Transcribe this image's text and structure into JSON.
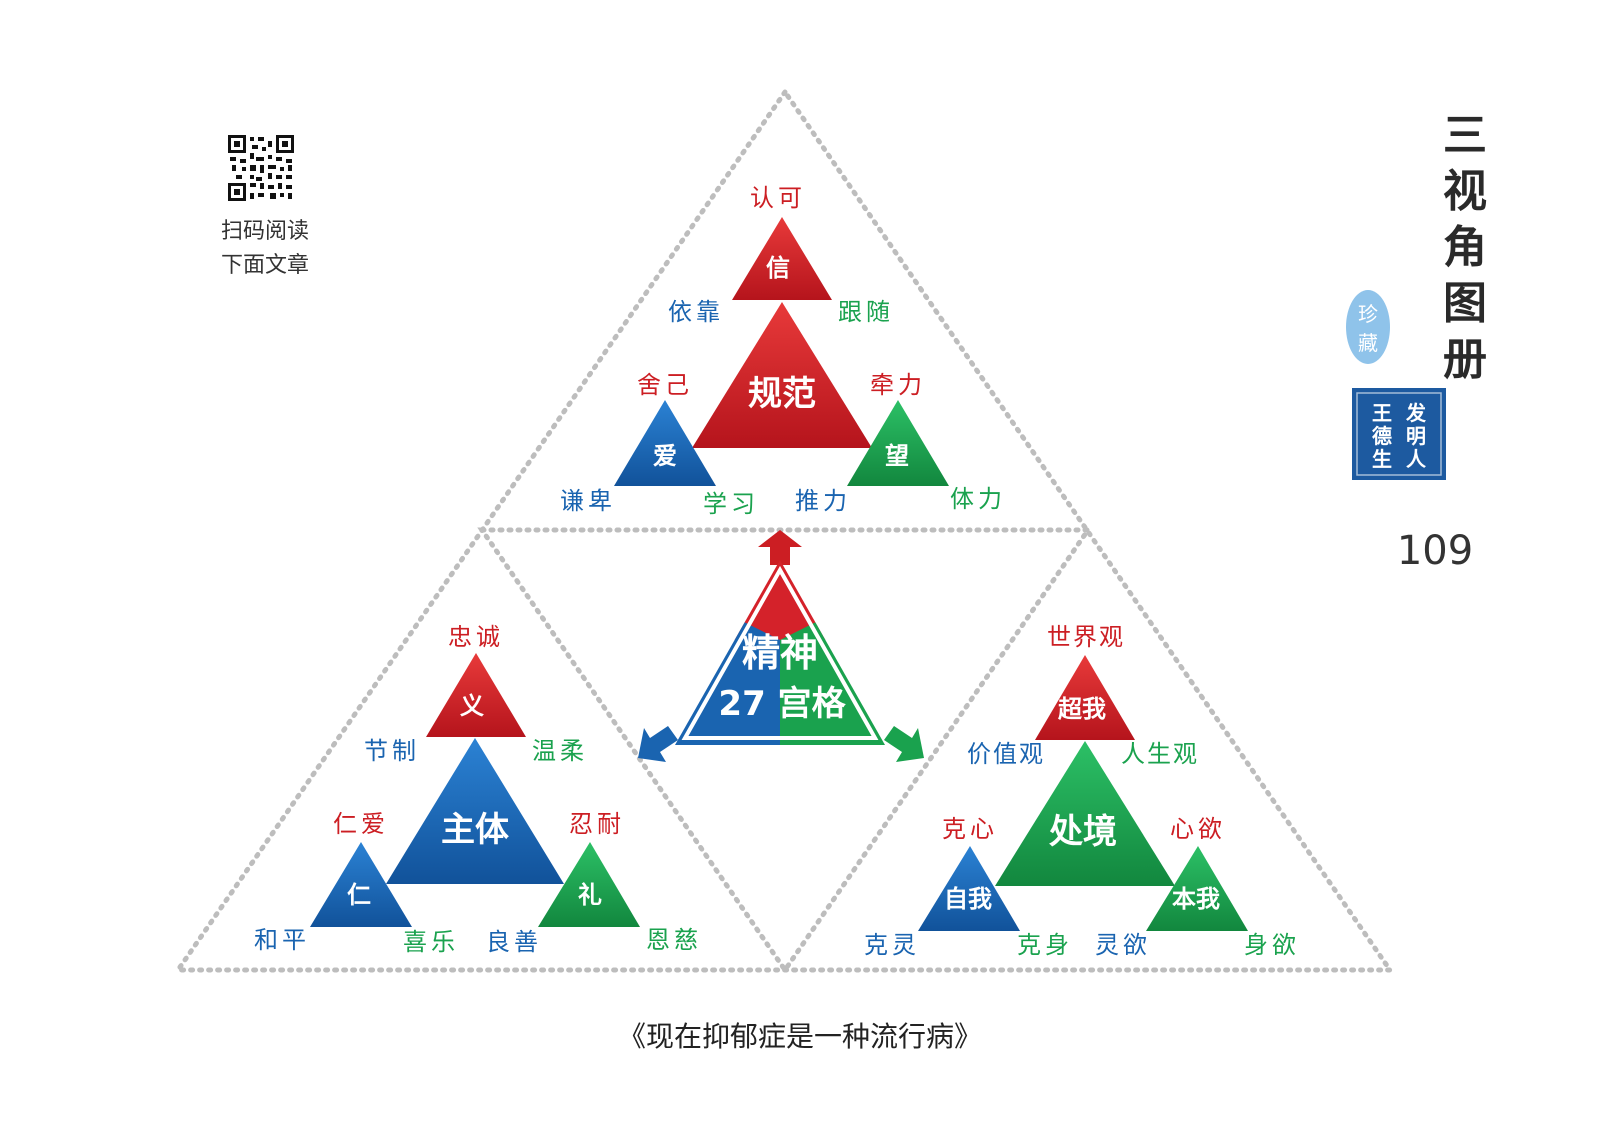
{
  "qr": {
    "caption_line1": "扫码阅读",
    "caption_line2": "下面文章"
  },
  "side": {
    "title_chars": [
      "三",
      "视",
      "角",
      "图",
      "册"
    ],
    "badge_chars": [
      "珍",
      "藏"
    ],
    "seal_chars": [
      "王",
      "德",
      "生",
      "发",
      "明",
      "人"
    ],
    "page_number": "109"
  },
  "center": {
    "line1": "精神",
    "line2": "27 宫格"
  },
  "top": {
    "main": "规范",
    "apex": "信",
    "left": "爱",
    "right": "望",
    "labels": {
      "apex_top": "认可",
      "apex_left": "依靠",
      "apex_right": "跟随",
      "main_left": "舍己",
      "main_right": "牵力",
      "left_bl": "谦卑",
      "left_br": "学习",
      "right_bl": "推力",
      "right_br": "体力"
    }
  },
  "bottom_left": {
    "main": "主体",
    "apex": "义",
    "left": "仁",
    "right": "礼",
    "labels": {
      "apex_top": "忠诚",
      "apex_left": "节制",
      "apex_right": "温柔",
      "main_left": "仁爱",
      "main_right": "忍耐",
      "left_bl": "和平",
      "left_br": "喜乐",
      "right_bl": "良善",
      "right_br": "恩慈"
    }
  },
  "bottom_right": {
    "main": "处境",
    "apex": "超我",
    "left": "自我",
    "right": "本我",
    "labels": {
      "apex_top": "世界观",
      "apex_left": "价值观",
      "apex_right": "人生观",
      "main_left": "克心",
      "main_right": "心欲",
      "left_bl": "克灵",
      "left_br": "克身",
      "right_bl": "灵欲",
      "right_br": "身欲"
    }
  },
  "caption": "《现在抑郁症是一种流行病》",
  "colors": {
    "red": "#cc1e23",
    "blue": "#1a64b0",
    "green": "#1aa24e",
    "dot": "#bfbfbf"
  }
}
